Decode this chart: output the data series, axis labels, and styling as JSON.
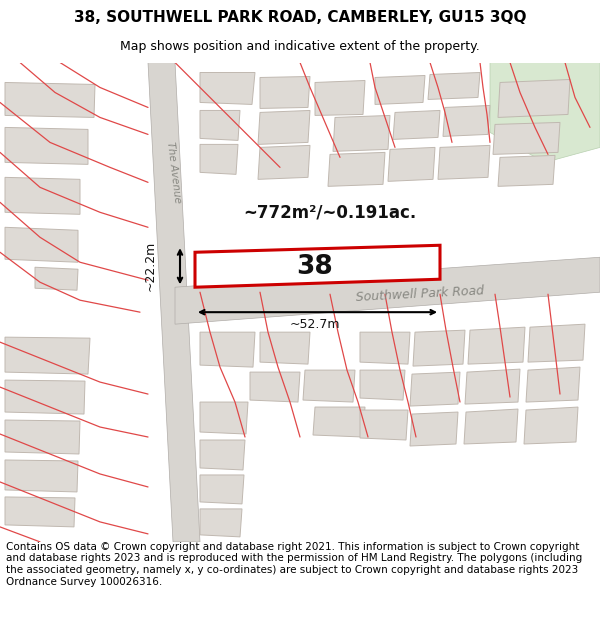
{
  "title": "38, SOUTHWELL PARK ROAD, CAMBERLEY, GU15 3QQ",
  "subtitle": "Map shows position and indicative extent of the property.",
  "footer": "Contains OS data © Crown copyright and database right 2021. This information is subject to Crown copyright and database rights 2023 and is reproduced with the permission of HM Land Registry. The polygons (including the associated geometry, namely x, y co-ordinates) are subject to Crown copyright and database rights 2023 Ordnance Survey 100026316.",
  "map_bg": "#f2f0ed",
  "building_fill": "#dedad5",
  "building_edge": "#c0b8b0",
  "highlight_fill": "#ffffff",
  "highlight_edge": "#cc0000",
  "road_fill": "#dedad5",
  "road_edge": "#b8b4b0",
  "green_fill": "#d8e8d0",
  "green_edge": "#b8d0b0",
  "red_line_color": "#e04848",
  "subject_label": "38",
  "area_label": "~772m²/~0.191ac.",
  "width_label": "~52.7m",
  "height_label": "~22.2m",
  "road_label_avenue": "The Avenue",
  "road_label_southwell": "Southwell Park Road",
  "title_fontsize": 11,
  "subtitle_fontsize": 9,
  "footer_fontsize": 7.5
}
